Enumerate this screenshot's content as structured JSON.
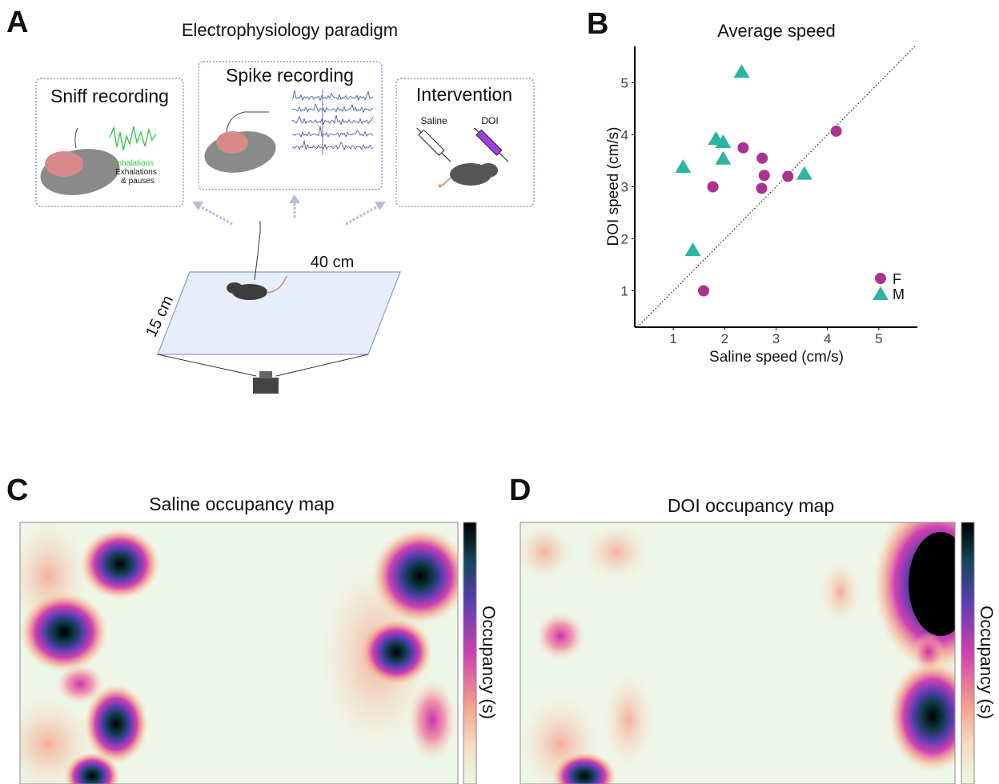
{
  "panel_labels": [
    "A",
    "B",
    "C",
    "D"
  ],
  "paradigm": {
    "title": "Electrophysiology paradigm",
    "sniff": {
      "title": "Sniff recording",
      "inhalations": "Inhalations",
      "exhalations": "Exhalations",
      "pauses": "& pauses"
    },
    "spike": {
      "title": "Spike recording"
    },
    "intervention": {
      "title": "Intervention",
      "saline": "Saline",
      "doi": "DOI"
    },
    "arena": {
      "length": "40 cm",
      "width": "15 cm"
    }
  },
  "chart_data": {
    "type": "scatter",
    "title": "Average speed",
    "x_label": "Saline speed (cm/s)",
    "y_label": "DOI speed (cm/s)",
    "xlim": [
      0.25,
      5.75
    ],
    "ylim": [
      0.3,
      5.7
    ],
    "xticks": [
      1,
      2,
      3,
      4,
      5
    ],
    "yticks": [
      1,
      2,
      3,
      4,
      5
    ],
    "identity_line": true,
    "legend": "lower right",
    "series": [
      {
        "name": "F",
        "color": "#a8348f",
        "marker": "circle",
        "x": [
          1.59,
          1.77,
          2.36,
          2.73,
          2.77,
          2.72,
          3.23,
          4.17
        ],
        "values": [
          1.0,
          3.0,
          3.75,
          3.55,
          3.22,
          2.97,
          3.2,
          4.07
        ]
      },
      {
        "name": "M",
        "color": "#2ab5a0",
        "marker": "triangle",
        "x": [
          1.19,
          1.38,
          1.83,
          1.97,
          1.97,
          2.33,
          3.55
        ],
        "values": [
          3.39,
          1.79,
          3.93,
          3.87,
          3.55,
          5.22,
          3.26
        ]
      }
    ]
  },
  "maps": [
    {
      "title": "Saline occupancy map",
      "colorbar_label": "Occupancy (s)"
    },
    {
      "title": "DOI occupancy map",
      "colorbar_label": "Occupancy (s)"
    }
  ]
}
